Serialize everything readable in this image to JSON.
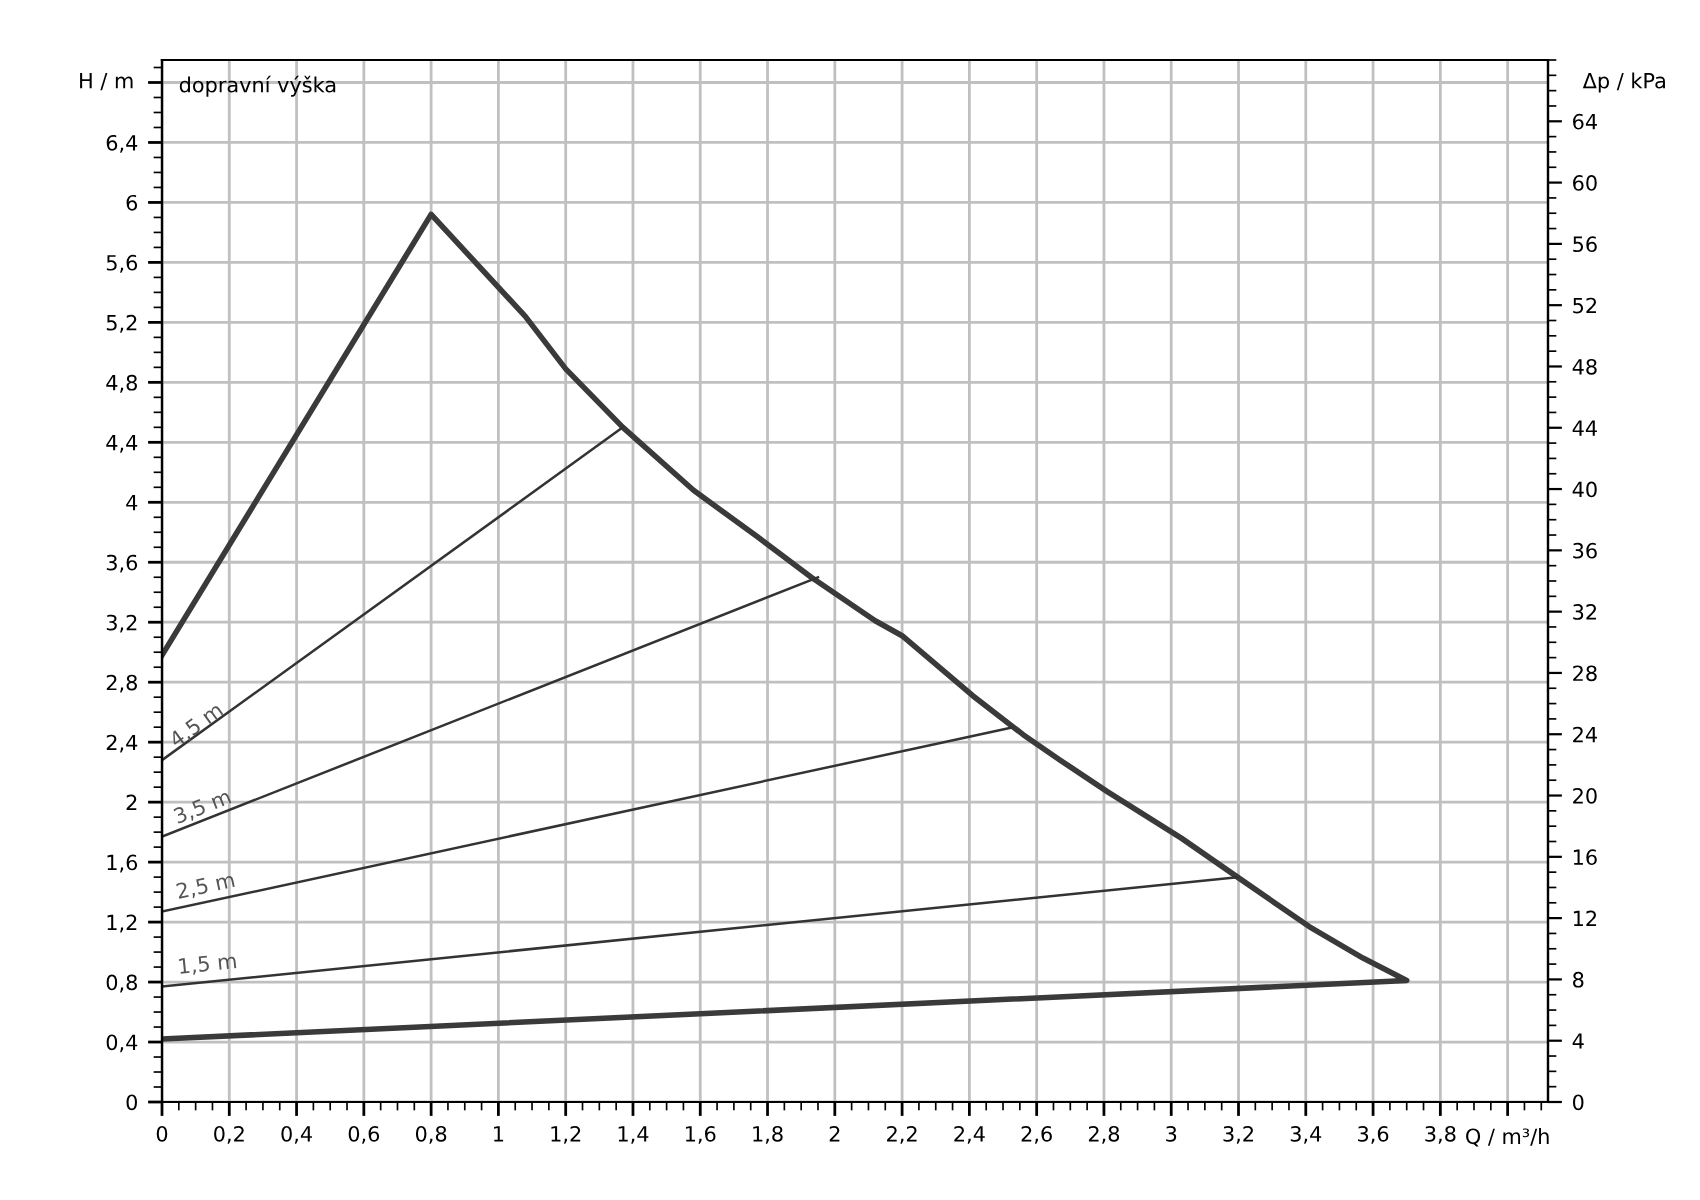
{
  "chart_data": {
    "type": "line",
    "xlabel": "Q / m³/h",
    "ylabel": "H / m",
    "y2label": "Δp / kPa",
    "annotations": [
      "dopravní výška"
    ],
    "series": [
      {
        "color": "#3a3a3a",
        "x": [
          0,
          0.8,
          1.08,
          1.2,
          1.37,
          1.58,
          1.77,
          1.93,
          2.12,
          2.2,
          2.41,
          2.56,
          2.67,
          2.81,
          3.03,
          3.21,
          3.41,
          3.57,
          3.7,
          0
        ],
        "values": [
          2.98,
          5.92,
          5.24,
          4.89,
          4.5,
          4.08,
          3.77,
          3.5,
          3.21,
          3.11,
          2.71,
          2.45,
          2.28,
          2.07,
          1.76,
          1.48,
          1.17,
          0.96,
          0.81,
          0.42
        ]
      },
      {
        "name": "4,5 m",
        "color": "#333333",
        "x": [
          0,
          1.37
        ],
        "values": [
          2.28,
          4.5
        ]
      },
      {
        "name": "3,5 m",
        "color": "#333333",
        "x": [
          0,
          1.95
        ],
        "values": [
          1.77,
          3.5
        ]
      },
      {
        "name": "2,5 m",
        "color": "#333333",
        "x": [
          0,
          2.53
        ],
        "values": [
          1.27,
          2.5
        ]
      },
      {
        "name": "1,5 m",
        "color": "#333333",
        "x": [
          0,
          3.2
        ],
        "values": [
          0.77,
          1.5
        ]
      }
    ],
    "xlim": [
      0,
      4.12
    ],
    "ylim": [
      0,
      6.95
    ],
    "y2lim": [
      0,
      68
    ],
    "xticks": [
      0,
      {
        "value": 0.2,
        "label": "0,2"
      },
      {
        "value": 0.4,
        "label": "0,4"
      },
      {
        "value": 0.6,
        "label": "0,6"
      },
      {
        "value": 0.8,
        "label": "0,8"
      },
      1,
      {
        "value": 1.2,
        "label": "1,2"
      },
      {
        "value": 1.4,
        "label": "1,4"
      },
      {
        "value": 1.6,
        "label": "1,6"
      },
      {
        "value": 1.8,
        "label": "1,8"
      },
      2,
      {
        "value": 2.2,
        "label": "2,2"
      },
      {
        "value": 2.4,
        "label": "2,4"
      },
      {
        "value": 2.6,
        "label": "2,6"
      },
      {
        "value": 2.8,
        "label": "2,8"
      },
      3,
      {
        "value": 3.2,
        "label": "3,2"
      },
      {
        "value": 3.4,
        "label": "3,4"
      },
      {
        "value": 3.6,
        "label": "3,6"
      },
      {
        "value": 3.8,
        "label": "3,8"
      },
      {
        "value": 4,
        "label": null
      }
    ],
    "yticks": [
      0,
      {
        "value": 0.4,
        "label": "0,4"
      },
      {
        "value": 0.8,
        "label": "0,8"
      },
      {
        "value": 1.2,
        "label": "1,2"
      },
      {
        "value": 1.6,
        "label": "1,6"
      },
      2,
      {
        "value": 2.4,
        "label": "2,4"
      },
      {
        "value": 2.8,
        "label": "2,8"
      },
      {
        "value": 3.2,
        "label": "3,2"
      },
      {
        "value": 3.6,
        "label": "3,6"
      },
      4,
      {
        "value": 4.4,
        "label": "4,4"
      },
      {
        "value": 4.8,
        "label": "4,8"
      },
      {
        "value": 5.2,
        "label": "5,2"
      },
      {
        "value": 5.6,
        "label": "5,6"
      },
      6,
      {
        "value": 6.4,
        "label": "6,4"
      },
      {
        "value": 6.8,
        "label": null
      }
    ],
    "y2ticks": [
      0,
      4,
      8,
      12,
      16,
      20,
      24,
      28,
      32,
      36,
      40,
      44,
      48,
      52,
      56,
      60,
      64
    ],
    "grid": true,
    "marker": "none",
    "line_style": "solid"
  }
}
